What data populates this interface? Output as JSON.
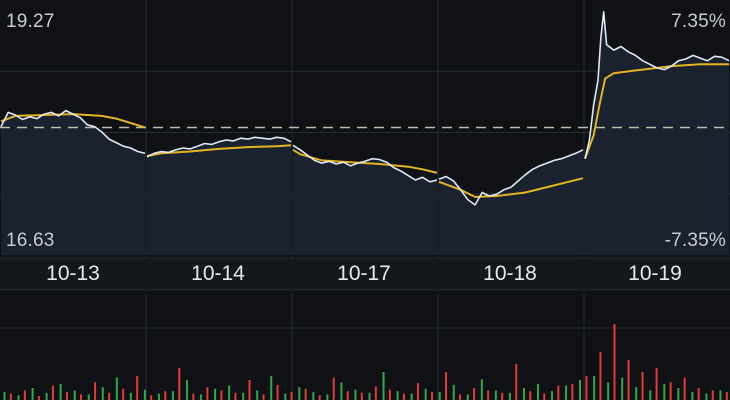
{
  "price_axis": {
    "max_label": "19.27",
    "min_label": "16.63"
  },
  "pct_axis": {
    "max_label": "7.35%",
    "min_label": "-7.35%"
  },
  "colors": {
    "background": "#0f1115",
    "area_fill": "#1a2230",
    "grid": "#272c35",
    "price_line": "#dfe8f5",
    "avg_line": "#e3b320",
    "baseline": "#b8bcaa",
    "volume_up": "#e53935",
    "volume_down": "#2ea84f"
  },
  "chart_data": {
    "type": "line",
    "title": "",
    "xlabel": "",
    "ylabel": "",
    "ylim": [
      16.63,
      19.27
    ],
    "baseline": 17.95,
    "categories": [
      "10-13",
      "10-14",
      "10-17",
      "10-18",
      "10-19"
    ],
    "series": [
      {
        "role": "price",
        "segments": [
          [
            [
              0,
              17.96
            ],
            [
              0.05,
              18.12
            ],
            [
              0.1,
              18.09
            ],
            [
              0.15,
              18.04
            ],
            [
              0.2,
              18.07
            ],
            [
              0.25,
              18.05
            ],
            [
              0.3,
              18.1
            ],
            [
              0.35,
              18.12
            ],
            [
              0.4,
              18.08
            ],
            [
              0.45,
              18.14
            ],
            [
              0.5,
              18.1
            ],
            [
              0.55,
              18.06
            ],
            [
              0.6,
              17.98
            ],
            [
              0.65,
              17.96
            ],
            [
              0.7,
              17.9
            ],
            [
              0.75,
              17.82
            ],
            [
              0.8,
              17.78
            ],
            [
              0.85,
              17.74
            ],
            [
              0.9,
              17.72
            ],
            [
              0.95,
              17.68
            ],
            [
              1,
              17.66
            ]
          ],
          [
            [
              0,
              17.62
            ],
            [
              0.05,
              17.66
            ],
            [
              0.1,
              17.68
            ],
            [
              0.15,
              17.67
            ],
            [
              0.2,
              17.7
            ],
            [
              0.25,
              17.72
            ],
            [
              0.3,
              17.71
            ],
            [
              0.35,
              17.74
            ],
            [
              0.4,
              17.77
            ],
            [
              0.45,
              17.76
            ],
            [
              0.5,
              17.79
            ],
            [
              0.55,
              17.81
            ],
            [
              0.6,
              17.8
            ],
            [
              0.65,
              17.83
            ],
            [
              0.7,
              17.82
            ],
            [
              0.75,
              17.84
            ],
            [
              0.8,
              17.83
            ],
            [
              0.85,
              17.82
            ],
            [
              0.9,
              17.84
            ],
            [
              0.95,
              17.83
            ],
            [
              1,
              17.79
            ]
          ],
          [
            [
              0,
              17.75
            ],
            [
              0.05,
              17.7
            ],
            [
              0.1,
              17.64
            ],
            [
              0.15,
              17.58
            ],
            [
              0.2,
              17.55
            ],
            [
              0.25,
              17.57
            ],
            [
              0.3,
              17.54
            ],
            [
              0.35,
              17.56
            ],
            [
              0.4,
              17.52
            ],
            [
              0.45,
              17.55
            ],
            [
              0.5,
              17.57
            ],
            [
              0.55,
              17.6
            ],
            [
              0.6,
              17.59
            ],
            [
              0.65,
              17.56
            ],
            [
              0.7,
              17.5
            ],
            [
              0.75,
              17.46
            ],
            [
              0.8,
              17.41
            ],
            [
              0.85,
              17.36
            ],
            [
              0.9,
              17.39
            ],
            [
              0.95,
              17.34
            ],
            [
              1,
              17.36
            ]
          ],
          [
            [
              0,
              17.37
            ],
            [
              0.05,
              17.4
            ],
            [
              0.1,
              17.35
            ],
            [
              0.15,
              17.25
            ],
            [
              0.2,
              17.14
            ],
            [
              0.25,
              17.08
            ],
            [
              0.3,
              17.22
            ],
            [
              0.35,
              17.18
            ],
            [
              0.4,
              17.2
            ],
            [
              0.45,
              17.25
            ],
            [
              0.5,
              17.28
            ],
            [
              0.55,
              17.35
            ],
            [
              0.6,
              17.42
            ],
            [
              0.65,
              17.48
            ],
            [
              0.7,
              17.52
            ],
            [
              0.75,
              17.55
            ],
            [
              0.8,
              17.58
            ],
            [
              0.85,
              17.6
            ],
            [
              0.9,
              17.63
            ],
            [
              0.95,
              17.66
            ],
            [
              1,
              17.7
            ]
          ],
          [
            [
              0,
              17.6
            ],
            [
              0.03,
              17.8
            ],
            [
              0.06,
              18.2
            ],
            [
              0.09,
              18.48
            ],
            [
              0.11,
              18.95
            ],
            [
              0.13,
              19.25
            ],
            [
              0.15,
              18.88
            ],
            [
              0.2,
              18.82
            ],
            [
              0.25,
              18.86
            ],
            [
              0.3,
              18.8
            ],
            [
              0.35,
              18.76
            ],
            [
              0.4,
              18.7
            ],
            [
              0.45,
              18.66
            ],
            [
              0.5,
              18.62
            ],
            [
              0.55,
              18.6
            ],
            [
              0.6,
              18.64
            ],
            [
              0.65,
              18.7
            ],
            [
              0.7,
              18.72
            ],
            [
              0.75,
              18.76
            ],
            [
              0.8,
              18.73
            ],
            [
              0.85,
              18.7
            ],
            [
              0.9,
              18.75
            ],
            [
              0.95,
              18.74
            ],
            [
              1,
              18.7
            ]
          ]
        ]
      },
      {
        "role": "average",
        "segments": [
          [
            [
              0,
              18.02
            ],
            [
              0.1,
              18.08
            ],
            [
              0.3,
              18.09
            ],
            [
              0.5,
              18.1
            ],
            [
              0.7,
              18.08
            ],
            [
              0.8,
              18.05
            ],
            [
              0.9,
              18.0
            ],
            [
              1,
              17.95
            ]
          ],
          [
            [
              0,
              17.63
            ],
            [
              0.1,
              17.66
            ],
            [
              0.3,
              17.68
            ],
            [
              0.5,
              17.71
            ],
            [
              0.7,
              17.73
            ],
            [
              0.9,
              17.74
            ],
            [
              1,
              17.75
            ]
          ],
          [
            [
              0,
              17.7
            ],
            [
              0.05,
              17.65
            ],
            [
              0.2,
              17.58
            ],
            [
              0.4,
              17.56
            ],
            [
              0.6,
              17.54
            ],
            [
              0.8,
              17.51
            ],
            [
              0.9,
              17.48
            ],
            [
              1,
              17.44
            ]
          ],
          [
            [
              0,
              17.34
            ],
            [
              0.15,
              17.25
            ],
            [
              0.25,
              17.17
            ],
            [
              0.4,
              17.18
            ],
            [
              0.6,
              17.22
            ],
            [
              0.8,
              17.3
            ],
            [
              1,
              17.38
            ]
          ],
          [
            [
              0,
              17.6
            ],
            [
              0.06,
              17.86
            ],
            [
              0.1,
              18.2
            ],
            [
              0.14,
              18.5
            ],
            [
              0.2,
              18.56
            ],
            [
              0.4,
              18.6
            ],
            [
              0.6,
              18.64
            ],
            [
              0.8,
              18.66
            ],
            [
              1,
              18.66
            ]
          ]
        ]
      }
    ],
    "volume": {
      "up": [
        0.08,
        0.12,
        0.05,
        0.18,
        0.1,
        0.07,
        0.22,
        0.09,
        0.14,
        0.3,
        0.06,
        0.11,
        0.4,
        0.08,
        0.16,
        0.12,
        0.09,
        0.25,
        0.07,
        0.19,
        0.1,
        0.14,
        0.06,
        0.28,
        0.11,
        0.09,
        0.17,
        0.13,
        0.08,
        0.21,
        0.1,
        0.35,
        0.07,
        0.15,
        0.12,
        0.09,
        0.45,
        0.11,
        0.08,
        0.18,
        0.2,
        0.3,
        0.6,
        0.95,
        0.5,
        0.35,
        0.4,
        0.22,
        0.28,
        0.15,
        0.12,
        0.1
      ],
      "down": [
        0.1,
        0.06,
        0.15,
        0.09,
        0.2,
        0.12,
        0.07,
        0.16,
        0.28,
        0.09,
        0.13,
        0.08,
        0.11,
        0.25,
        0.07,
        0.14,
        0.18,
        0.09,
        0.12,
        0.3,
        0.08,
        0.16,
        0.1,
        0.07,
        0.22,
        0.13,
        0.09,
        0.35,
        0.11,
        0.08,
        0.14,
        0.1,
        0.19,
        0.07,
        0.26,
        0.12,
        0.09,
        0.15,
        0.2,
        0.11,
        0.18,
        0.25,
        0.3,
        0.22,
        0.28,
        0.16,
        0.12,
        0.2,
        0.15,
        0.1,
        0.08,
        0.12
      ]
    }
  }
}
